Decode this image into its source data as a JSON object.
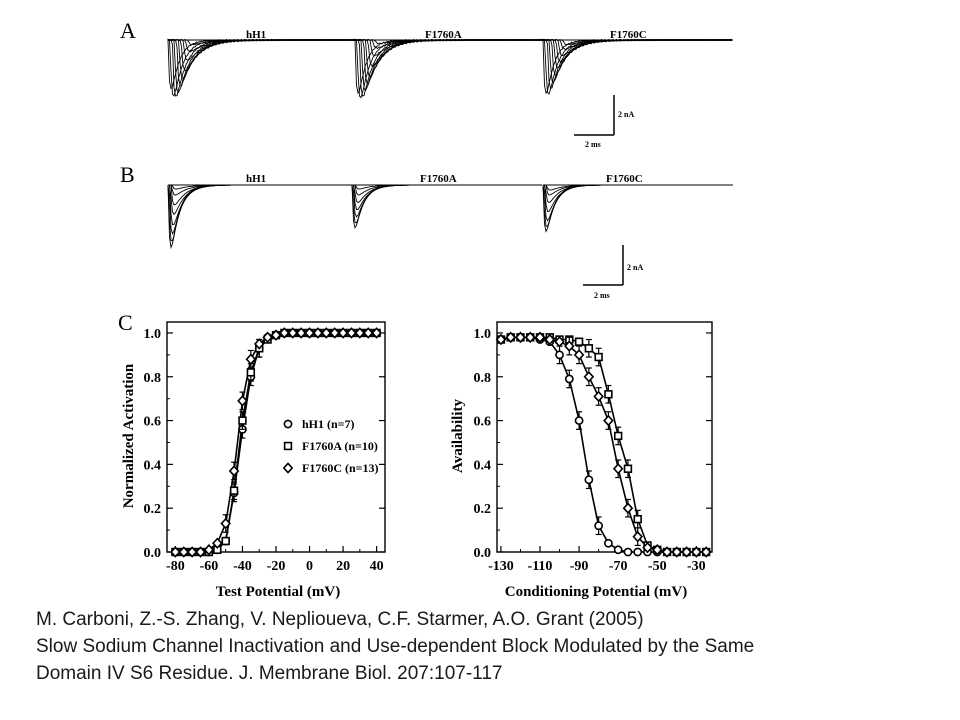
{
  "figure": {
    "panel_a": {
      "letter": "A",
      "traces": [
        "hH1",
        "F1760A",
        "F1760C"
      ],
      "scale_current": "2 nA",
      "scale_time": "2 ms"
    },
    "panel_b": {
      "letter": "B",
      "traces": [
        "hH1",
        "F1760A",
        "F1760C"
      ],
      "scale_current": "2 nA",
      "scale_time": "2 ms"
    },
    "panel_c": {
      "letter": "C"
    }
  },
  "chart_data": [
    {
      "type": "scatter",
      "xlabel": "Test Potential (mV)",
      "ylabel": "Normalized Activation",
      "xlim": [
        -85,
        45
      ],
      "ylim": [
        0,
        1.05
      ],
      "xticks": [
        "-80",
        "-60",
        "-40",
        "-20",
        "0",
        "20",
        "40"
      ],
      "yticks": [
        "0.0",
        "0.2",
        "0.4",
        "0.6",
        "0.8",
        "1.0"
      ],
      "legend_position": "center-right",
      "x": [
        -80,
        -75,
        -70,
        -65,
        -60,
        -55,
        -50,
        -45,
        -40,
        -35,
        -30,
        -25,
        -20,
        -15,
        -10,
        -5,
        0,
        5,
        10,
        15,
        20,
        25,
        30,
        35,
        40
      ],
      "series": [
        {
          "name": "hH1 (n=7)",
          "marker": "circle",
          "values": [
            0,
            0,
            0,
            0,
            0,
            0.01,
            0.05,
            0.27,
            0.56,
            0.8,
            0.93,
            0.98,
            0.99,
            1.0,
            1.0,
            1.0,
            1.0,
            1.0,
            1.0,
            1.0,
            1.0,
            1.0,
            1.0,
            1.0,
            1.0
          ]
        },
        {
          "name": "F1760A (n=10)",
          "marker": "square",
          "values": [
            0,
            0,
            0,
            0,
            0,
            0.01,
            0.05,
            0.28,
            0.6,
            0.82,
            0.93,
            0.97,
            0.99,
            1.0,
            1.0,
            1.0,
            1.0,
            1.0,
            1.0,
            1.0,
            1.0,
            1.0,
            1.0,
            1.0,
            1.0
          ]
        },
        {
          "name": "F1760C (n=13)",
          "marker": "diamond",
          "values": [
            0,
            0,
            0,
            0,
            0.01,
            0.04,
            0.13,
            0.37,
            0.69,
            0.88,
            0.95,
            0.98,
            0.99,
            1.0,
            1.0,
            1.0,
            1.0,
            1.0,
            1.0,
            1.0,
            1.0,
            1.0,
            1.0,
            1.0,
            1.0
          ]
        }
      ]
    },
    {
      "type": "scatter",
      "xlabel": "Conditioning Potential (mV)",
      "ylabel": "Availability",
      "xlim": [
        -132,
        -22
      ],
      "ylim": [
        0,
        1.05
      ],
      "xticks": [
        "-130",
        "-110",
        "-90",
        "-70",
        "-50",
        "-30"
      ],
      "yticks": [
        "0.0",
        "0.2",
        "0.4",
        "0.6",
        "0.8",
        "1.0"
      ],
      "x": [
        -130,
        -125,
        -120,
        -115,
        -110,
        -105,
        -100,
        -95,
        -90,
        -85,
        -80,
        -75,
        -70,
        -65,
        -60,
        -55,
        -50,
        -45,
        -40,
        -35,
        -30,
        -25
      ],
      "series": [
        {
          "marker": "circle",
          "values": [
            0.97,
            0.98,
            0.98,
            0.98,
            0.97,
            0.96,
            0.9,
            0.79,
            0.6,
            0.33,
            0.12,
            0.04,
            0.01,
            0,
            0,
            0,
            0,
            0,
            0,
            0,
            0,
            0
          ]
        },
        {
          "marker": "square",
          "values": [
            0.97,
            0.98,
            0.98,
            0.98,
            0.98,
            0.98,
            0.97,
            0.97,
            0.96,
            0.93,
            0.89,
            0.72,
            0.53,
            0.38,
            0.15,
            0.03,
            0.01,
            0,
            0,
            0,
            0,
            0
          ]
        },
        {
          "marker": "diamond",
          "values": [
            0.97,
            0.98,
            0.98,
            0.98,
            0.98,
            0.97,
            0.96,
            0.94,
            0.9,
            0.8,
            0.71,
            0.6,
            0.38,
            0.2,
            0.07,
            0.02,
            0.01,
            0,
            0,
            0,
            0,
            0
          ]
        }
      ]
    }
  ],
  "citation": {
    "line1": "M. Carboni, Z.-S. Zhang, V. Nepliouevа, C.F. Starmer, A.O. Grant (2005)",
    "line2": "Slow Sodium Channel Inactivation and Use-dependent Block Modulated by the Same",
    "line3": "Domain IV S6 Residue. J. Membrane Biol. 207:107-117"
  }
}
